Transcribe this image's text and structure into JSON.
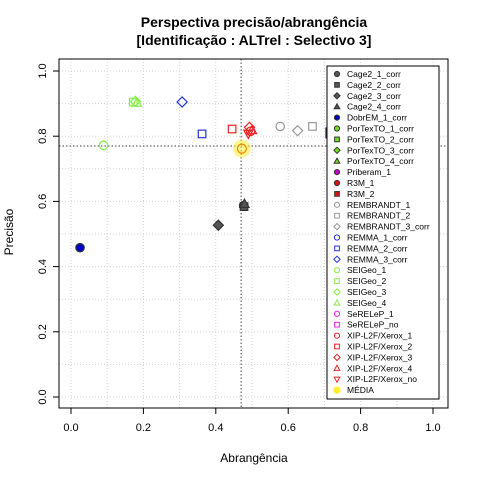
{
  "chart_data": {
    "type": "scatter",
    "title": "Perspectiva precisão/abrangência",
    "subtitle": "[Identificação : ALTrel : Selectivo 3]",
    "xlabel": "Abrangência",
    "ylabel": "Precisão",
    "xlim": [
      0,
      1
    ],
    "ylim": [
      0,
      1
    ],
    "xticks": [
      "0.0",
      "0.2",
      "0.4",
      "0.6",
      "0.8",
      "1.0"
    ],
    "yticks": [
      "0.0",
      "0.2",
      "0.4",
      "0.6",
      "0.8",
      "1.0"
    ],
    "grid": true,
    "legend_position": "top-right",
    "reference_lines": {
      "x": 0.47,
      "y": 0.77
    },
    "series": [
      {
        "name": "Cage2_1_corr",
        "color": "#555555",
        "shape": "circle",
        "filled": true,
        "x": 0.477,
        "y": 0.587
      },
      {
        "name": "Cage2_2_corr",
        "color": "#555555",
        "shape": "square",
        "filled": true,
        "x": 0.478,
        "y": 0.584
      },
      {
        "name": "Cage2_3_corr",
        "color": "#555555",
        "shape": "diamond",
        "filled": true,
        "x": 0.407,
        "y": 0.527
      },
      {
        "name": "Cage2_4_corr",
        "color": "#555555",
        "shape": "triangle",
        "filled": true,
        "x": 0.479,
        "y": 0.592
      },
      {
        "name": "DobrEM_1_corr",
        "color": "#0000cc",
        "shape": "circle",
        "filled": true,
        "x": 0.025,
        "y": 0.458
      },
      {
        "name": "PorTexTO_1_corr",
        "color": "#77dd22",
        "shape": "circle",
        "filled": true,
        "x": null,
        "y": null
      },
      {
        "name": "PorTexTO_2_corr",
        "color": "#77dd22",
        "shape": "square",
        "filled": true,
        "x": null,
        "y": null
      },
      {
        "name": "PorTexTO_3_corr",
        "color": "#77dd22",
        "shape": "diamond",
        "filled": true,
        "x": null,
        "y": null
      },
      {
        "name": "PorTexTO_4_corr",
        "color": "#77dd22",
        "shape": "triangle",
        "filled": true,
        "x": null,
        "y": null
      },
      {
        "name": "Priberam_1",
        "color": "#cc00cc",
        "shape": "circle",
        "filled": true,
        "x": null,
        "y": null
      },
      {
        "name": "R3M_1",
        "color": "#dd1111",
        "shape": "circle",
        "filled": true,
        "x": null,
        "y": null
      },
      {
        "name": "R3M_2",
        "color": "#dd1111",
        "shape": "square",
        "filled": true,
        "x": 0.718,
        "y": 0.81
      },
      {
        "name": "REMBRANDT_1",
        "color": "#999999",
        "shape": "circle",
        "filled": false,
        "x": 0.578,
        "y": 0.83
      },
      {
        "name": "REMBRANDT_2",
        "color": "#999999",
        "shape": "square",
        "filled": false,
        "x": 0.667,
        "y": 0.83
      },
      {
        "name": "REMBRANDT_3_corr",
        "color": "#999999",
        "shape": "diamond",
        "filled": false,
        "x": 0.626,
        "y": 0.817
      },
      {
        "name": "REMMA_1_corr",
        "color": "#2233dd",
        "shape": "circle",
        "filled": false,
        "x": null,
        "y": null
      },
      {
        "name": "REMMA_2_corr",
        "color": "#2233dd",
        "shape": "square",
        "filled": false,
        "x": 0.362,
        "y": 0.807
      },
      {
        "name": "REMMA_3_corr",
        "color": "#2233dd",
        "shape": "diamond",
        "filled": false,
        "x": 0.307,
        "y": 0.905
      },
      {
        "name": "SEIGeo_1",
        "color": "#88ee44",
        "shape": "circle",
        "filled": false,
        "x": 0.09,
        "y": 0.772
      },
      {
        "name": "SEIGeo_2",
        "color": "#88ee44",
        "shape": "square",
        "filled": false,
        "x": 0.172,
        "y": 0.905
      },
      {
        "name": "SEIGeo_3",
        "color": "#88ee44",
        "shape": "diamond",
        "filled": false,
        "x": 0.178,
        "y": 0.907
      },
      {
        "name": "SEIGeo_4",
        "color": "#88ee44",
        "shape": "triangle",
        "filled": false,
        "x": 0.182,
        "y": 0.902
      },
      {
        "name": "SeRELeP_1",
        "color": "#ee22ee",
        "shape": "circle",
        "filled": false,
        "x": null,
        "y": null
      },
      {
        "name": "SeRELeP_no",
        "color": "#ee22ee",
        "shape": "square",
        "filled": false,
        "x": null,
        "y": null
      },
      {
        "name": "XIP-L2F/Xerox_1",
        "color": "#ee2222",
        "shape": "circle",
        "filled": false,
        "x": 0.496,
        "y": 0.815
      },
      {
        "name": "XIP-L2F/Xerox_2",
        "color": "#ee2222",
        "shape": "square",
        "filled": false,
        "x": 0.445,
        "y": 0.822
      },
      {
        "name": "XIP-L2F/Xerox_3",
        "color": "#ee2222",
        "shape": "diamond",
        "filled": false,
        "x": 0.493,
        "y": 0.827
      },
      {
        "name": "XIP-L2F/Xerox_4",
        "color": "#ee2222",
        "shape": "triangle",
        "filled": false,
        "x": 0.5,
        "y": 0.818
      },
      {
        "name": "XIP-L2F/Xerox_no",
        "color": "#ee2222",
        "shape": "triangle-down",
        "filled": false,
        "x": 0.49,
        "y": 0.808
      },
      {
        "name": "MÉDIA",
        "color": "#ffee33",
        "shape": "circle",
        "filled": true,
        "x": 0.472,
        "y": 0.762,
        "highlight": true
      }
    ]
  }
}
